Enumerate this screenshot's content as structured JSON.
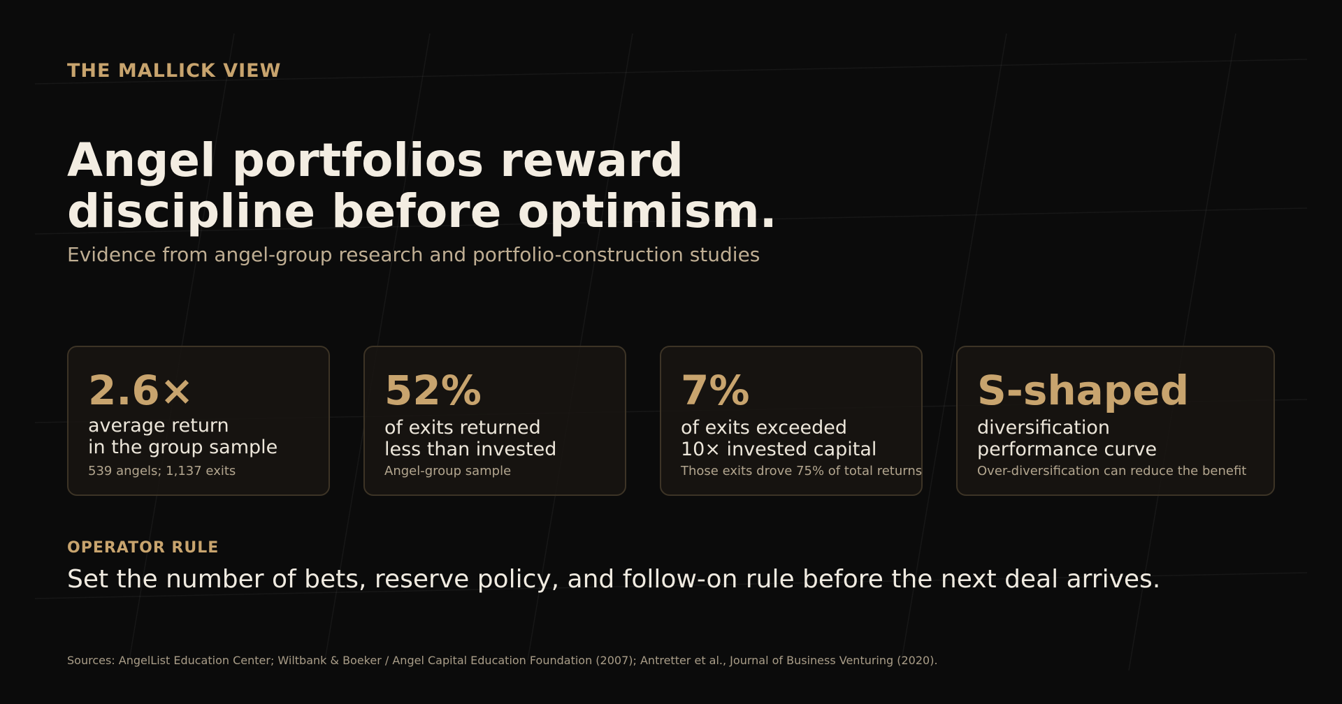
{
  "header": {
    "kicker": "THE MALLICK VIEW",
    "title_lines": [
      "Angel portfolios reward",
      "discipline before optimism."
    ],
    "subtitle": "Evidence from angel-group research and portfolio-construction studies"
  },
  "stats": [
    {
      "value": "2.6×",
      "label_lines": [
        "average return",
        "in the group sample"
      ],
      "note": "539 angels; 1,137 exits"
    },
    {
      "value": "52%",
      "label_lines": [
        "of exits returned",
        "less than invested"
      ],
      "note": "Angel-group sample"
    },
    {
      "value": "7%",
      "label_lines": [
        "of exits exceeded",
        "10× invested capital"
      ],
      "note": "Those exits drove 75% of total returns"
    },
    {
      "value": "S-shaped",
      "label_lines": [
        "diversification",
        "performance curve"
      ],
      "note": "Over-diversification can reduce the benefit"
    }
  ],
  "operator_rule": {
    "heading": "OPERATOR RULE",
    "text": "Set the number of bets, reserve policy, and follow-on rule before the next deal arrives."
  },
  "sources": "Sources: AngelList Education Center; Wiltbank & Boeker / Angel Capital Education Foundation (2007); Antretter et al., Journal of Business Venturing (2020).",
  "colors": {
    "background": "#0b0b0b",
    "accent_gold": "#c8a46e",
    "headline": "#f3ede2",
    "muted": "#bfae93",
    "card_border": "#3d3426"
  }
}
